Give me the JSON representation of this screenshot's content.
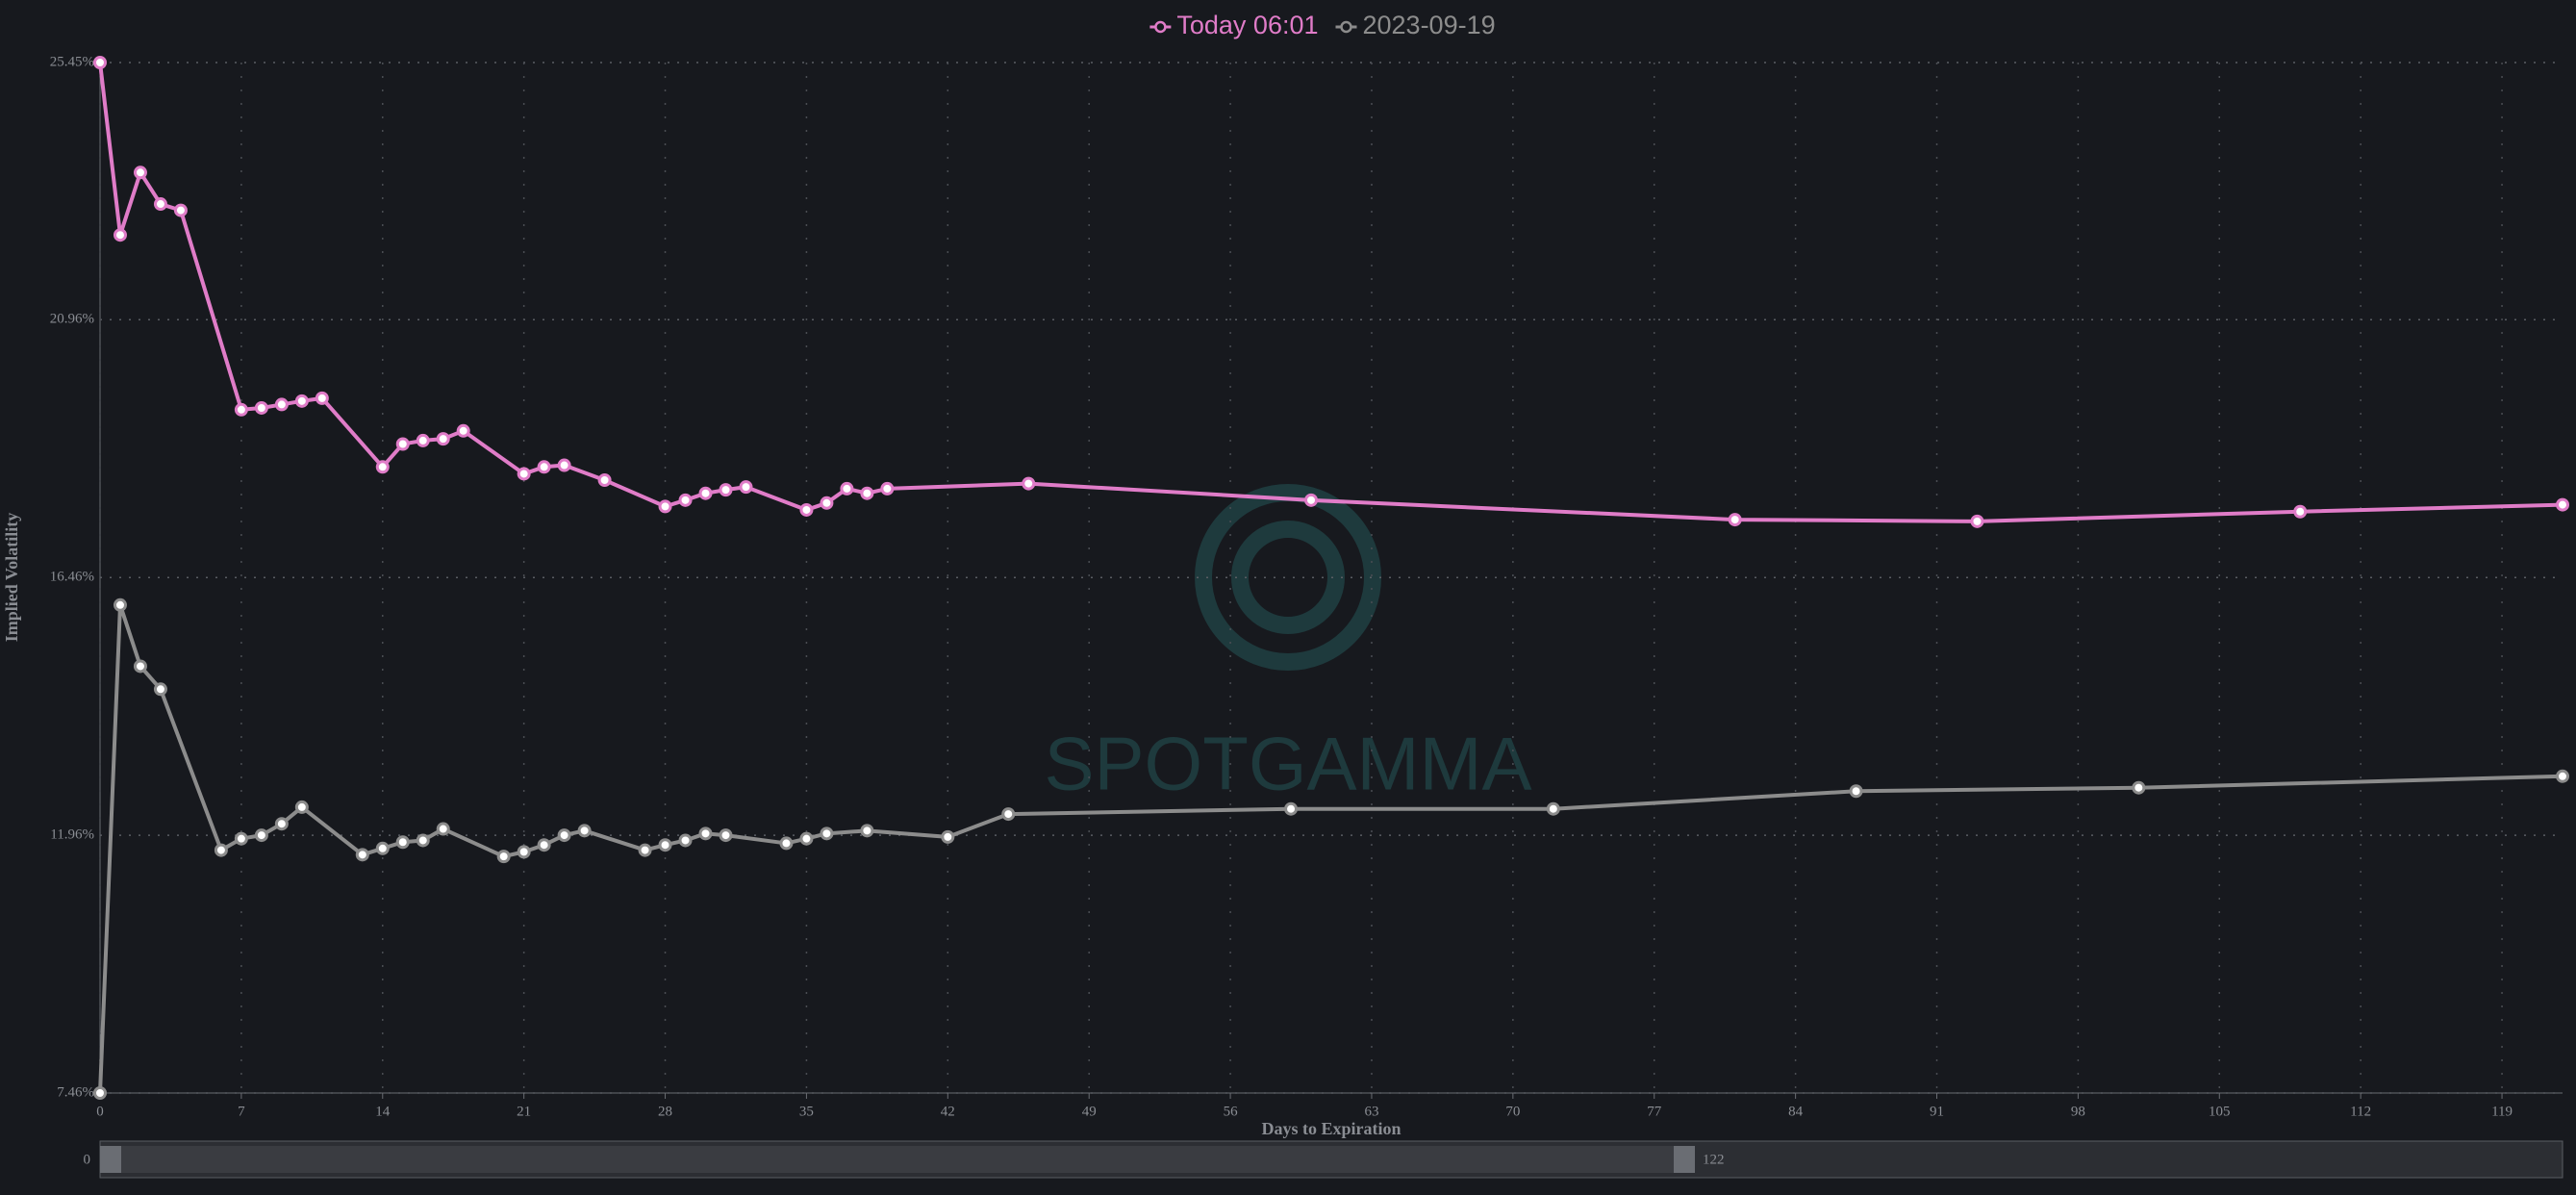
{
  "chart_data": {
    "type": "line",
    "x_label": "Days to Expiration",
    "y_label": "Implied Volatility",
    "watermark": "SPOTGAMMA",
    "xlim": [
      0,
      122
    ],
    "xticks": [
      0,
      7,
      14,
      21,
      28,
      35,
      42,
      49,
      56,
      63,
      70,
      77,
      84,
      91,
      98,
      105,
      112,
      119
    ],
    "ylim": [
      7.46,
      25.45
    ],
    "yticks": [
      {
        "value": 7.46,
        "label": "7.46%"
      },
      {
        "value": 11.96,
        "label": "11.96%"
      },
      {
        "value": 16.46,
        "label": "16.46%"
      },
      {
        "value": 20.96,
        "label": "20.96%"
      },
      {
        "value": 25.45,
        "label": "25.45%"
      }
    ],
    "grid": true,
    "legend": "top",
    "zoom_range": [
      0,
      122
    ],
    "series": [
      {
        "name": "Today 06:01",
        "color": "#e07cc8",
        "x": [
          0,
          1,
          2,
          3,
          4,
          7,
          8,
          9,
          10,
          11,
          14,
          15,
          16,
          17,
          18,
          21,
          22,
          23,
          25,
          28,
          29,
          30,
          31,
          32,
          35,
          36,
          37,
          38,
          39,
          46,
          60,
          81,
          93,
          109,
          122
        ],
        "values": [
          25.45,
          22.44,
          23.53,
          22.98,
          22.87,
          19.39,
          19.42,
          19.48,
          19.54,
          19.59,
          18.39,
          18.79,
          18.85,
          18.88,
          19.02,
          18.27,
          18.39,
          18.42,
          18.16,
          17.7,
          17.81,
          17.93,
          17.99,
          18.04,
          17.64,
          17.76,
          18.01,
          17.93,
          18.01,
          18.1,
          17.81,
          17.47,
          17.44,
          17.61,
          17.73
        ]
      },
      {
        "name": "2023-09-19",
        "color": "#8c8c8c",
        "x": [
          0,
          1,
          2,
          3,
          6,
          7,
          8,
          9,
          10,
          13,
          14,
          15,
          16,
          17,
          20,
          21,
          22,
          23,
          24,
          27,
          28,
          29,
          30,
          31,
          34,
          35,
          36,
          38,
          42,
          45,
          59,
          72,
          87,
          101,
          122
        ],
        "values": [
          7.46,
          15.98,
          14.91,
          14.51,
          11.7,
          11.9,
          11.96,
          12.16,
          12.45,
          11.62,
          11.73,
          11.84,
          11.87,
          12.07,
          11.59,
          11.67,
          11.79,
          11.96,
          12.04,
          11.7,
          11.79,
          11.87,
          11.99,
          11.96,
          11.82,
          11.9,
          11.99,
          12.04,
          11.93,
          12.33,
          12.42,
          12.42,
          12.73,
          12.79,
          12.99
        ]
      }
    ]
  }
}
